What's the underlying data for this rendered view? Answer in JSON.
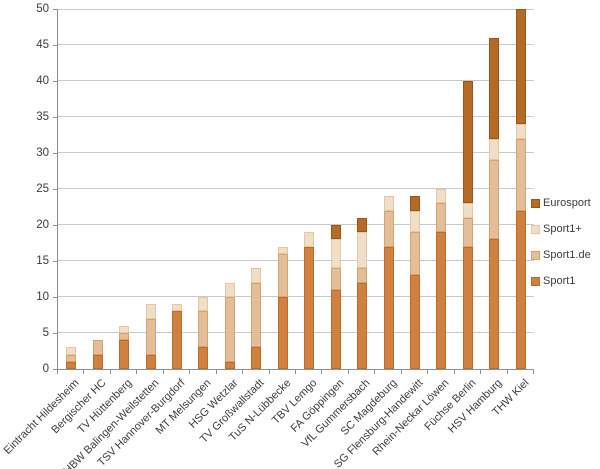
{
  "chart_data": {
    "type": "bar",
    "stacked": true,
    "title": "",
    "xlabel": "",
    "ylabel": "",
    "ylim": [
      0,
      50
    ],
    "ytick_step": 5,
    "yticks": [
      0,
      5,
      10,
      15,
      20,
      25,
      30,
      35,
      40,
      45,
      50
    ],
    "grid": true,
    "legend_position": "right",
    "legend_order_top_to_bottom": [
      "Eurosport",
      "Sport1+",
      "Sport1.de",
      "Sport1"
    ],
    "categories": [
      "Eintracht Hildesheim",
      "Bergischer HC",
      "TV Hüttenberg",
      "HBW Balingen-Weilstetten",
      "TSV Hannover-Burgdorf",
      "MT Melsungen",
      "HSG Wetzlar",
      "TV Großwallstadt",
      "TuS N-Lübbecke",
      "TBV Lemgo",
      "FA Göppingen",
      "VfL Gummersbach",
      "SC Magdeburg",
      "SG Flensburg-Handewitt",
      "Rhein-Neckar Löwen",
      "Füchse Berlin",
      "HSV Hamburg",
      "THW Kiel"
    ],
    "series": [
      {
        "name": "Sport1",
        "color": "#d0813f",
        "border_color": "#bc6c28",
        "values": [
          1,
          2,
          4,
          2,
          8,
          3,
          1,
          3,
          10,
          17,
          11,
          12,
          17,
          13,
          19,
          17,
          18,
          22
        ]
      },
      {
        "name": "Sport1.de",
        "color": "#e4be99",
        "border_color": "#d2a474",
        "values": [
          1,
          2,
          1,
          5,
          0,
          5,
          9,
          9,
          6,
          0,
          3,
          2,
          5,
          6,
          4,
          4,
          11,
          10
        ]
      },
      {
        "name": "Sport1+",
        "color": "#f1dec6",
        "border_color": "#e2c9a3",
        "values": [
          1,
          0,
          1,
          2,
          1,
          2,
          2,
          2,
          1,
          2,
          4,
          5,
          2,
          3,
          2,
          2,
          3,
          2
        ]
      },
      {
        "name": "Eurosport",
        "color": "#b56a26",
        "border_color": "#99561a",
        "values": [
          0,
          0,
          0,
          0,
          0,
          0,
          0,
          0,
          0,
          0,
          2,
          2,
          0,
          2,
          0,
          17,
          14,
          16
        ]
      }
    ]
  },
  "colors": {
    "gridline": "#c9c9c9",
    "axis": "#8f8f8f",
    "text": "#3c3c3c",
    "background": "#ffffff"
  }
}
